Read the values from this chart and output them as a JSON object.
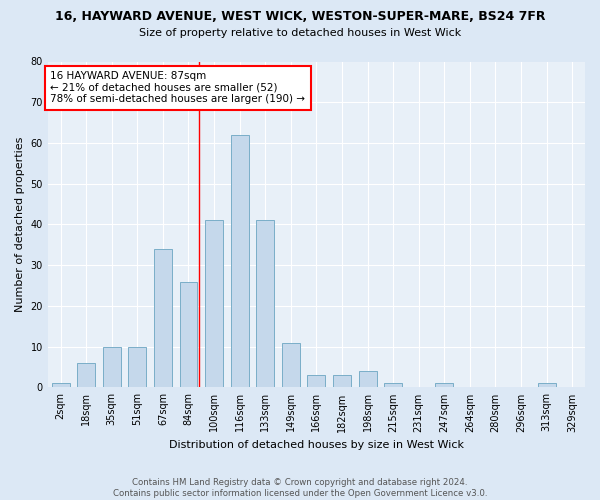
{
  "title1": "16, HAYWARD AVENUE, WEST WICK, WESTON-SUPER-MARE, BS24 7FR",
  "title2": "Size of property relative to detached houses in West Wick",
  "xlabel": "Distribution of detached houses by size in West Wick",
  "ylabel": "Number of detached properties",
  "bar_labels": [
    "2sqm",
    "18sqm",
    "35sqm",
    "51sqm",
    "67sqm",
    "84sqm",
    "100sqm",
    "116sqm",
    "133sqm",
    "149sqm",
    "166sqm",
    "182sqm",
    "198sqm",
    "215sqm",
    "231sqm",
    "247sqm",
    "264sqm",
    "280sqm",
    "296sqm",
    "313sqm",
    "329sqm"
  ],
  "bar_values": [
    1,
    6,
    10,
    10,
    34,
    26,
    41,
    62,
    41,
    11,
    3,
    3,
    4,
    1,
    0,
    1,
    0,
    0,
    0,
    1,
    0
  ],
  "bar_color": "#c5d8eb",
  "bar_edge_color": "#7aaec8",
  "vline_x": 5.42,
  "annotation_text": "16 HAYWARD AVENUE: 87sqm\n← 21% of detached houses are smaller (52)\n78% of semi-detached houses are larger (190) →",
  "annotation_box_color": "white",
  "annotation_box_edgecolor": "red",
  "vline_color": "red",
  "ylim": [
    0,
    80
  ],
  "yticks": [
    0,
    10,
    20,
    30,
    40,
    50,
    60,
    70,
    80
  ],
  "footer": "Contains HM Land Registry data © Crown copyright and database right 2024.\nContains public sector information licensed under the Open Government Licence v3.0.",
  "bg_color": "#dce8f5",
  "plot_bg_color": "#e8f0f8",
  "title1_fontsize": 9,
  "title2_fontsize": 8,
  "ylabel_fontsize": 8,
  "xlabel_fontsize": 8,
  "tick_fontsize": 7,
  "bar_width": 0.7
}
